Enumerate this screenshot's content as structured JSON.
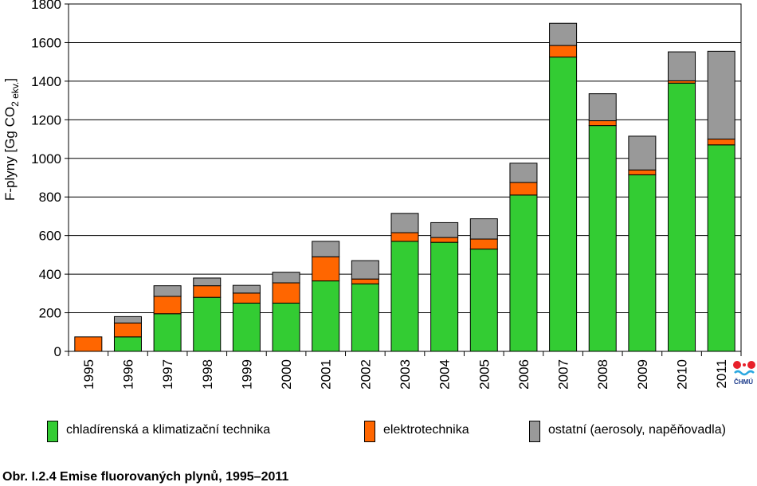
{
  "chart_data": {
    "type": "bar",
    "stacked": true,
    "title": "",
    "xlabel": "",
    "ylabel": "F-plyny [Gg CO2 ekv.]",
    "ylabel_parts": {
      "main": "F-plyny [Gg CO",
      "sub": "2 ekv.",
      "end": "]"
    },
    "ylim": [
      0,
      1800
    ],
    "yticks": [
      "0",
      "200",
      "400",
      "600",
      "800",
      "1000",
      "1200",
      "1400",
      "1600",
      "1800"
    ],
    "grid": true,
    "legend_position": "bottom",
    "categories": [
      "1995",
      "1996",
      "1997",
      "1998",
      "1999",
      "2000",
      "2001",
      "2002",
      "2003",
      "2004",
      "2005",
      "2006",
      "2007",
      "2008",
      "2009",
      "2010",
      "2011"
    ],
    "series": [
      {
        "name": "chladírenská a klimatizační technika",
        "color": "#33cc33",
        "values": [
          0,
          75,
          195,
          280,
          250,
          250,
          365,
          350,
          570,
          565,
          530,
          810,
          1525,
          1170,
          915,
          1390,
          1070
        ]
      },
      {
        "name": "elektrotechnika",
        "color": "#ff6600",
        "values": [
          75,
          72,
          90,
          60,
          52,
          105,
          125,
          25,
          45,
          25,
          52,
          65,
          60,
          25,
          25,
          12,
          30
        ]
      },
      {
        "name": "ostatní (aerosoly, napěňovadla)",
        "color": "#999999",
        "values": [
          0,
          33,
          55,
          40,
          40,
          55,
          80,
          95,
          100,
          77,
          105,
          100,
          115,
          140,
          175,
          150,
          455
        ]
      }
    ]
  },
  "caption": "Obr. I.2.4  Emise fluorovaných plynů, 1995–2011",
  "logo": {
    "text": "ČHMÚ",
    "name": "chmu-logo"
  }
}
